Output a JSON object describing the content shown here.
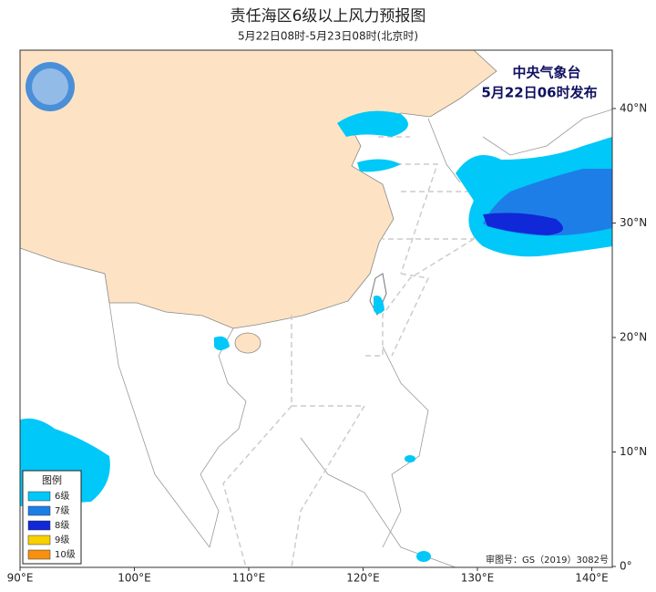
{
  "map": {
    "title": "责任海区6级以上风力预报图",
    "subtitle": "5月22日08时-5月23日08时(北京时)",
    "issuer": "中央气象台",
    "issue_time": "5月22日06时发布",
    "legend": {
      "title": "图例",
      "items": [
        {
          "label": "6级",
          "color": "#00c8f8"
        },
        {
          "label": "7级",
          "color": "#1e7ee8"
        },
        {
          "label": "8级",
          "color": "#1028d8"
        },
        {
          "label": "9级",
          "color": "#f8d000"
        },
        {
          "label": "10级",
          "color": "#f89010"
        }
      ]
    },
    "lon_ticks": [
      {
        "value": 90,
        "label": "90°E"
      },
      {
        "value": 100,
        "label": "100°E"
      },
      {
        "value": 110,
        "label": "110°E"
      },
      {
        "value": 120,
        "label": "120°E"
      },
      {
        "value": 130,
        "label": "130°E"
      },
      {
        "value": 140,
        "label": "140°E"
      }
    ],
    "lat_ticks": [
      {
        "value": 0,
        "label": "0°"
      },
      {
        "value": 10,
        "label": "10°N"
      },
      {
        "value": 20,
        "label": "20°N"
      },
      {
        "value": 30,
        "label": "30°N"
      },
      {
        "value": 40,
        "label": "40°N"
      }
    ],
    "approval": "审图号：GS（2019）3082号"
  }
}
